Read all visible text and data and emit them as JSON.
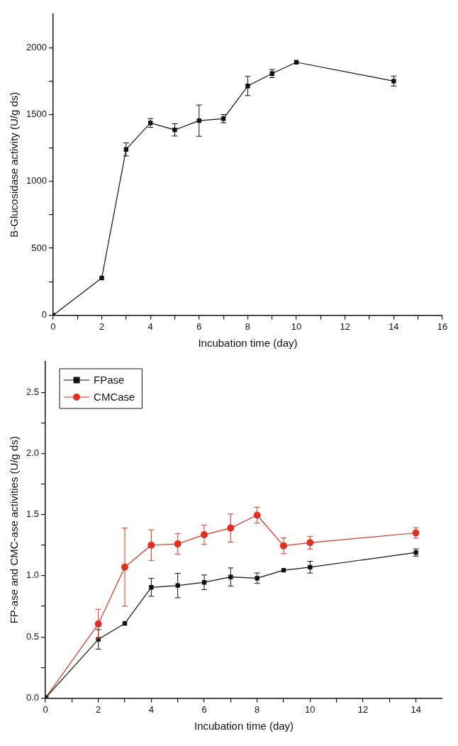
{
  "chart_data": [
    {
      "type": "line",
      "xlabel": "Incubation time (day)",
      "ylabel": "B-Glucosidase activity (U/g ds)",
      "x": [
        0,
        2,
        3,
        4,
        5,
        6,
        7,
        8,
        9,
        10,
        14
      ],
      "xlim": [
        0,
        16
      ],
      "xticks": [
        0,
        {
          "value": 1,
          "label": null
        },
        2,
        {
          "value": 3,
          "label": null
        },
        4,
        {
          "value": 5,
          "label": null
        },
        6,
        {
          "value": 7,
          "label": null
        },
        8,
        {
          "value": 9,
          "label": null
        },
        10,
        {
          "value": 11,
          "label": null
        },
        12,
        {
          "value": 13,
          "label": null
        },
        14,
        {
          "value": 15,
          "label": null
        },
        16
      ],
      "ylim": [
        0,
        2250
      ],
      "yticks": [
        0,
        {
          "value": 250,
          "label": null
        },
        500,
        {
          "value": 750,
          "label": null
        },
        1000,
        {
          "value": 1250,
          "label": null
        },
        1500,
        {
          "value": 1750,
          "label": null
        },
        2000
      ],
      "grid": false,
      "legend": false,
      "marker": "square",
      "series": [
        {
          "color": "#111111",
          "values": [
            0,
            278,
            1239,
            1437,
            1385,
            1454,
            1469,
            1713,
            1806,
            1891,
            1750
          ],
          "errors": [
            null,
            null,
            49,
            33,
            46,
            117,
            31,
            72,
            30,
            null,
            37
          ]
        }
      ]
    },
    {
      "type": "line",
      "xlabel": "Incubation time (day)",
      "ylabel": "FP-ase and CMC-ase activities (U/g ds)",
      "x": [
        0,
        2,
        3,
        4,
        5,
        6,
        7,
        8,
        9,
        10,
        14
      ],
      "xlim": [
        0,
        15
      ],
      "xticks": [
        0,
        {
          "value": 1,
          "label": null
        },
        2,
        {
          "value": 3,
          "label": null
        },
        4,
        {
          "value": 5,
          "label": null
        },
        6,
        {
          "value": 7,
          "label": null
        },
        8,
        {
          "value": 9,
          "label": null
        },
        10,
        {
          "value": 11,
          "label": null
        },
        12,
        {
          "value": 13,
          "label": null
        },
        14
      ],
      "ylim": [
        0,
        2.75
      ],
      "yticks": [
        {
          "value": 0,
          "label": "0.0"
        },
        {
          "value": 0.25,
          "label": null
        },
        0.5,
        {
          "value": 0.75,
          "label": null
        },
        {
          "value": 1,
          "label": "1.0"
        },
        {
          "value": 1.25,
          "label": null
        },
        1.5,
        {
          "value": 1.75,
          "label": null
        },
        {
          "value": 2,
          "label": "2.0"
        },
        {
          "value": 2.25,
          "label": null
        },
        2.5
      ],
      "grid": false,
      "legend": "top left",
      "series": [
        {
          "name": "FPase",
          "color": "#111111",
          "marker": "square",
          "values": [
            0,
            0.48,
            0.61,
            0.905,
            0.92,
            0.946,
            0.99,
            0.98,
            1.045,
            1.07,
            1.19
          ],
          "errors": [
            null,
            0.08,
            null,
            0.073,
            0.1,
            0.06,
            0.074,
            0.043,
            null,
            0.048,
            0.03
          ]
        },
        {
          "name": "CMCase",
          "color": "#e03020",
          "marker": "circle",
          "values": [
            0,
            0.606,
            1.07,
            1.25,
            1.26,
            1.335,
            1.39,
            1.495,
            1.245,
            1.27,
            1.35
          ],
          "errors": [
            null,
            0.12,
            0.32,
            0.125,
            0.085,
            0.08,
            0.115,
            0.065,
            0.065,
            0.052,
            0.043
          ]
        }
      ]
    }
  ]
}
